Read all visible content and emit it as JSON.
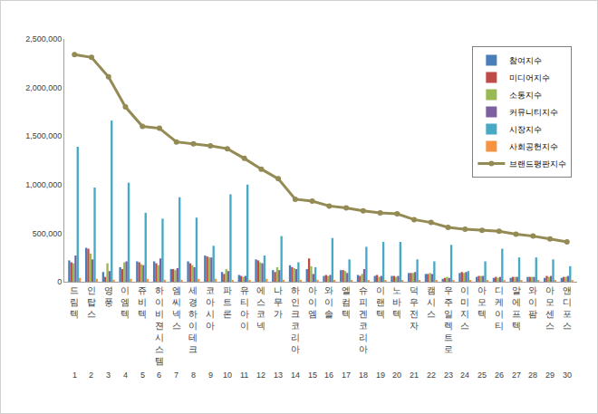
{
  "chart_data": {
    "type": "bar",
    "categories": [
      "드림텍",
      "인탑스",
      "영풍",
      "이엠텍",
      "쥬비텍",
      "하이비젼시스템",
      "엠씨넥스",
      "세경하이테크",
      "코아시아",
      "파트론",
      "유티아이",
      "에스코넥",
      "나무가",
      "하인크코리아",
      "아이엠",
      "와이솔",
      "엘컴텍",
      "슈피겐코리아",
      "이랜텍",
      "노바텍",
      "덕우전자",
      "캠시스",
      "우주일렉트로",
      "이미지스",
      "아모텍",
      "디케이티",
      "알에프텍",
      "와이팜",
      "아모센스",
      "앤디포스"
    ],
    "ranks": [
      1,
      2,
      3,
      4,
      5,
      6,
      7,
      8,
      9,
      10,
      11,
      12,
      13,
      14,
      15,
      16,
      17,
      18,
      19,
      20,
      21,
      22,
      23,
      24,
      25,
      26,
      27,
      28,
      29,
      30
    ],
    "series": [
      {
        "name": "참여지수",
        "type": "bar",
        "color": "#4a7ebb",
        "values": [
          220000,
          350000,
          100000,
          150000,
          210000,
          210000,
          130000,
          210000,
          270000,
          100000,
          70000,
          230000,
          120000,
          170000,
          130000,
          60000,
          120000,
          70000,
          60000,
          60000,
          90000,
          80000,
          30000,
          90000,
          50000,
          40000,
          40000,
          50000,
          40000,
          40000
        ]
      },
      {
        "name": "미디어지수",
        "type": "bar",
        "color": "#be4b48",
        "values": [
          200000,
          340000,
          50000,
          130000,
          200000,
          190000,
          130000,
          190000,
          260000,
          80000,
          60000,
          220000,
          100000,
          150000,
          240000,
          70000,
          120000,
          60000,
          70000,
          60000,
          90000,
          80000,
          40000,
          100000,
          60000,
          50000,
          50000,
          50000,
          60000,
          50000
        ]
      },
      {
        "name": "소통지수",
        "type": "bar",
        "color": "#98b954",
        "values": [
          190000,
          290000,
          190000,
          200000,
          180000,
          170000,
          120000,
          170000,
          250000,
          130000,
          50000,
          200000,
          150000,
          140000,
          160000,
          60000,
          110000,
          80000,
          50000,
          50000,
          90000,
          90000,
          50000,
          90000,
          60000,
          40000,
          50000,
          50000,
          50000,
          50000
        ]
      },
      {
        "name": "커뮤니티지수",
        "type": "bar",
        "color": "#7d60a0",
        "values": [
          270000,
          230000,
          110000,
          210000,
          170000,
          240000,
          140000,
          150000,
          250000,
          110000,
          60000,
          190000,
          120000,
          130000,
          80000,
          70000,
          90000,
          130000,
          60000,
          60000,
          100000,
          80000,
          40000,
          100000,
          60000,
          50000,
          50000,
          50000,
          60000,
          60000
        ]
      },
      {
        "name": "시장지수",
        "type": "bar",
        "color": "#46aac5",
        "values": [
          1390000,
          970000,
          1660000,
          1020000,
          710000,
          650000,
          870000,
          660000,
          370000,
          900000,
          1000000,
          270000,
          470000,
          200000,
          150000,
          450000,
          230000,
          360000,
          410000,
          410000,
          230000,
          210000,
          380000,
          110000,
          210000,
          340000,
          250000,
          250000,
          230000,
          160000
        ]
      },
      {
        "name": "사회공헌지수",
        "type": "bar",
        "color": "#f69240",
        "values": [
          40000,
          30000,
          20000,
          30000,
          30000,
          20000,
          20000,
          30000,
          30000,
          20000,
          10000,
          30000,
          20000,
          20000,
          20000,
          10000,
          20000,
          10000,
          10000,
          10000,
          10000,
          10000,
          10000,
          10000,
          10000,
          10000,
          10000,
          10000,
          10000,
          10000
        ]
      },
      {
        "name": "브랜드평판지수",
        "type": "line",
        "color": "#948a54",
        "marker": "circle",
        "values": [
          2340000,
          2310000,
          2110000,
          1800000,
          1600000,
          1580000,
          1440000,
          1420000,
          1400000,
          1370000,
          1270000,
          1160000,
          1060000,
          850000,
          830000,
          780000,
          760000,
          730000,
          710000,
          700000,
          640000,
          610000,
          560000,
          540000,
          530000,
          520000,
          490000,
          470000,
          440000,
          410000
        ]
      }
    ],
    "ylim": [
      0,
      2500000
    ],
    "yticks": [
      0,
      {
        "value": 500000,
        "label": "500,000"
      },
      {
        "value": 1000000,
        "label": "1,000,000"
      },
      {
        "value": 1500000,
        "label": "1,500,000"
      },
      {
        "value": 2000000,
        "label": "2,000,000"
      },
      {
        "value": 2500000,
        "label": "2,500,000"
      }
    ],
    "grid": false,
    "legend": "top-right"
  }
}
